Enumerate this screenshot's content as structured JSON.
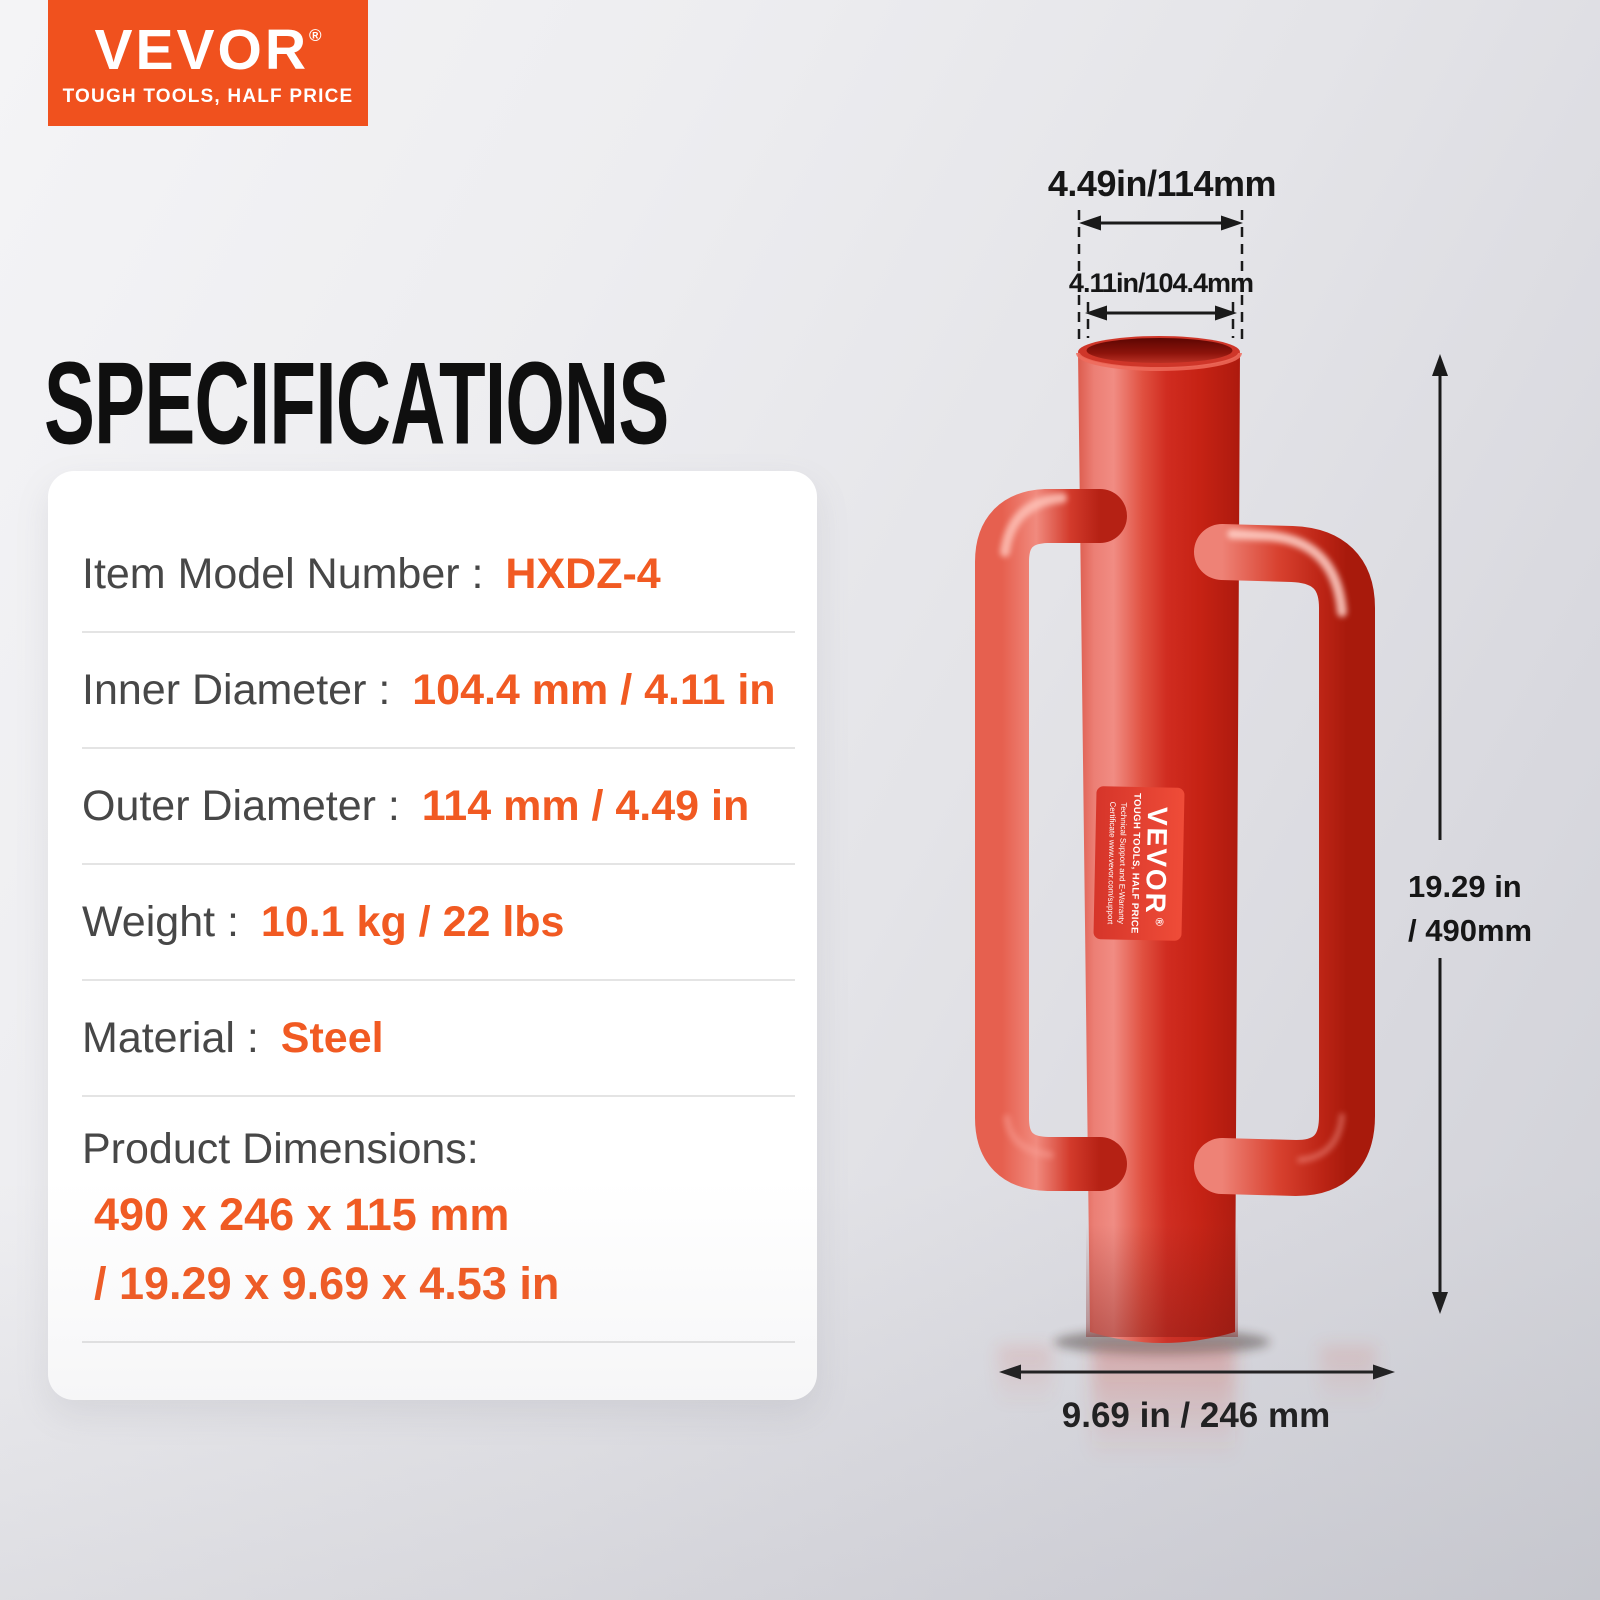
{
  "brand": {
    "logo_text": "VEVOR",
    "logo_reg": "®",
    "tagline": "TOUGH TOOLS, HALF PRICE"
  },
  "heading": "SPECIFICATIONS",
  "colors": {
    "logo_bg": "#F0511E",
    "value_orange": "#F15A22",
    "label_gray": "#474747",
    "product_red": "#D63A2B",
    "annotation_black": "#161616"
  },
  "spec_card": {
    "rows": [
      {
        "label": "Item Model Number : ",
        "value": "HXDZ-4"
      },
      {
        "label": "Inner Diameter : ",
        "value": "104.4 mm / 4.11 in"
      },
      {
        "label": "Outer Diameter : ",
        "value": "114 mm / 4.49 in"
      },
      {
        "label": "Weight : ",
        "value": "10.1 kg / 22 lbs"
      },
      {
        "label": "Material : ",
        "value": "Steel"
      },
      {
        "label": "Product Dimensions:",
        "value_lines": [
          "490 x 246 x 115 mm",
          "/ 19.29 x 9.69 x 4.53 in"
        ]
      }
    ]
  },
  "product": {
    "label": {
      "brand": "VEVOR",
      "reg": "®",
      "tagline": "TOUGH TOOLS, HALF PRICE",
      "line2": "Technical Support and E-Warranty",
      "line3": "Certificate www.vevor.com/support"
    }
  },
  "annotations": {
    "outer_diameter": "4.49in/114mm",
    "inner_diameter": "4.11in/104.4mm",
    "height_line1": "19.29 in",
    "height_line2": "/ 490mm",
    "width": "9.69 in / 246 mm"
  }
}
